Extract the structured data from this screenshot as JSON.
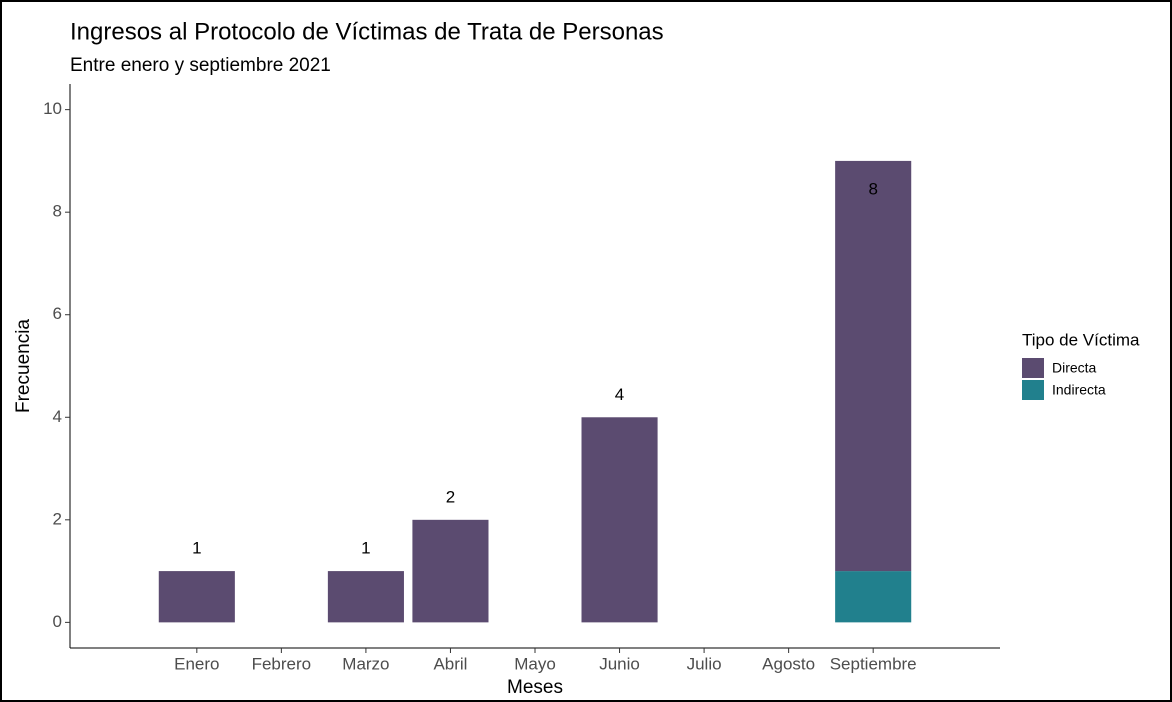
{
  "chart_data": {
    "type": "stacked_bar",
    "title": "Ingresos al Protocolo de Víctimas de Trata de Personas",
    "subtitle": "Entre enero y septiembre 2021",
    "x_label": "Meses",
    "y_label": "Frecuencia",
    "categories": [
      "Enero",
      "Febrero",
      "Marzo",
      "Abril",
      "Mayo",
      "Junio",
      "Julio",
      "Agosto",
      "Septiembre"
    ],
    "series": [
      {
        "name": "Indirecta",
        "color": "#21808d",
        "values": [
          null,
          null,
          null,
          null,
          null,
          null,
          null,
          null,
          1
        ]
      },
      {
        "name": "Directa",
        "color": "#5b4b70",
        "values": [
          1,
          null,
          1,
          2,
          null,
          4,
          null,
          null,
          8
        ]
      }
    ],
    "legend_title": "Tipo de Víctima",
    "legend_order": [
      "Directa",
      "Indirecta"
    ],
    "ylim": [
      -0.5,
      10.5
    ],
    "yticks": [
      0,
      2,
      4,
      6,
      8,
      10
    ],
    "grid": false
  }
}
